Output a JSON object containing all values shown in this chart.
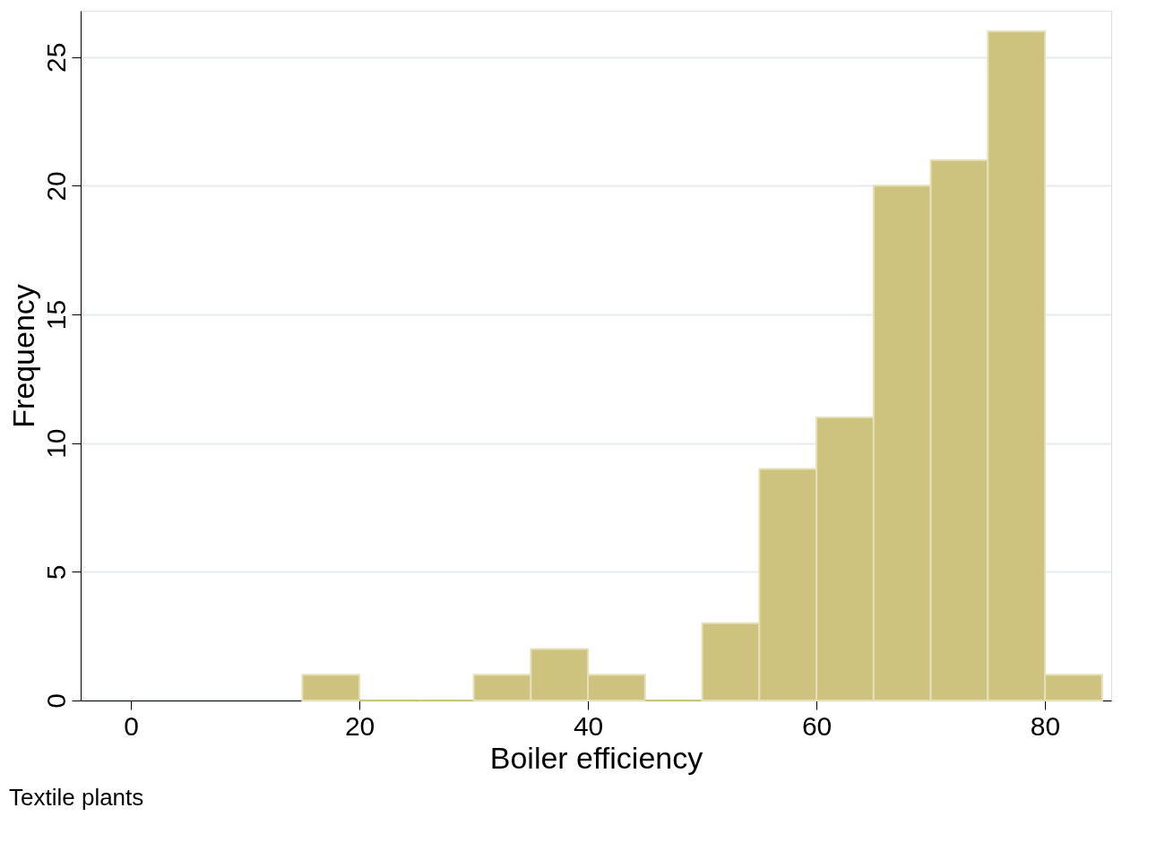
{
  "chart_data": {
    "type": "histogram",
    "xlabel": "Boiler efficiency",
    "ylabel": "Frequency",
    "annotations": [
      "Textile plants"
    ],
    "bins": [
      15,
      20,
      25,
      30,
      35,
      40,
      45,
      50,
      55,
      60,
      65,
      70,
      75,
      80,
      85
    ],
    "values": [
      1,
      0,
      0,
      1,
      2,
      1,
      0,
      3,
      9,
      11,
      20,
      21,
      26,
      1
    ],
    "color": "#cdc37f",
    "xlim": [
      -4.4,
      85.8
    ],
    "xticks": [
      0,
      20,
      40,
      60,
      80
    ],
    "ylim": [
      0,
      26.8
    ],
    "yticks": [
      0,
      5,
      10,
      15,
      20,
      25
    ],
    "grid": "y"
  }
}
